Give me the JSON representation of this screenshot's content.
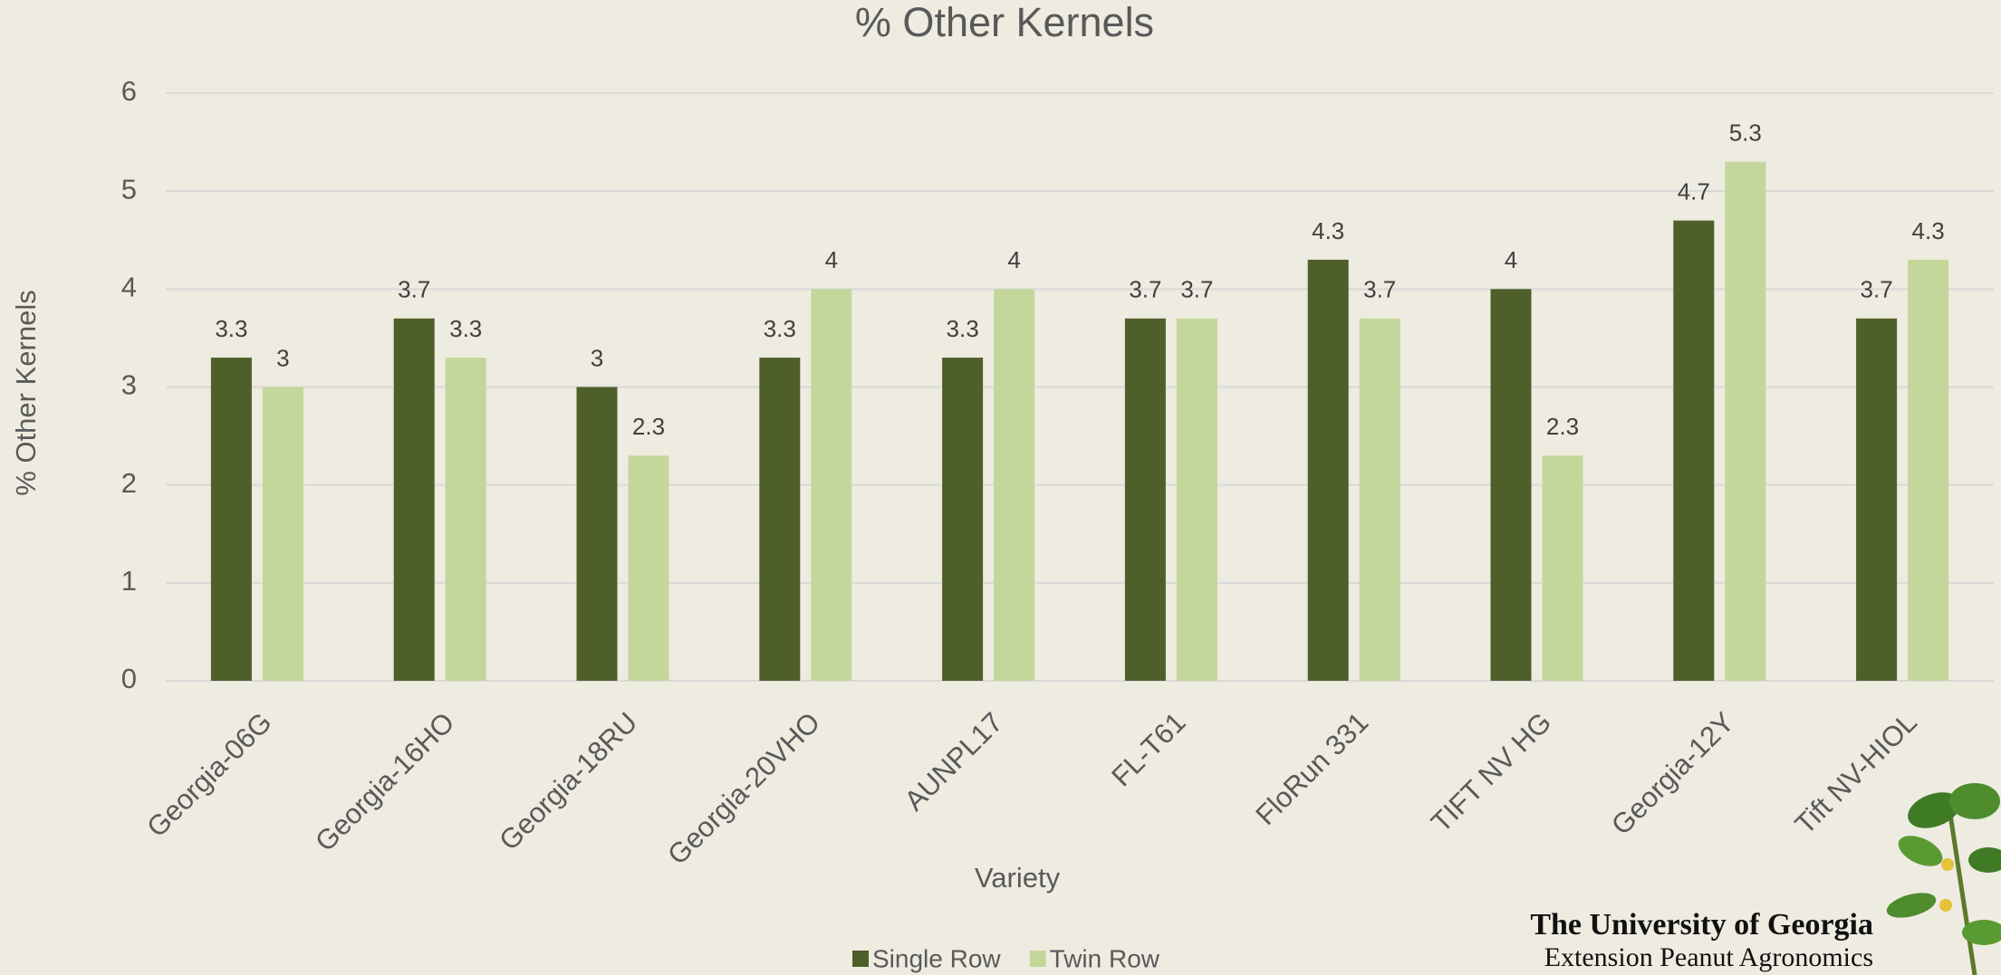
{
  "chart_data": {
    "type": "bar",
    "title": "% Other Kernels",
    "x_label": "Variety",
    "y_label": "% Other Kernels",
    "categories": [
      "Georgia-06G",
      "Georgia-16HO",
      "Georgia-18RU",
      "Georgia-20VHO",
      "AUNPL17",
      "FL-T61",
      "FloRun 331",
      "TIFT NV HG",
      "Georgia-12Y",
      "Tift NV-HIOL"
    ],
    "series": [
      {
        "name": "Single Row",
        "color": "#4f5f2a",
        "values": [
          3.3,
          3.7,
          3,
          3.3,
          3.3,
          3.7,
          4.3,
          4,
          4.7,
          3.7
        ]
      },
      {
        "name": "Twin Row",
        "color": "#c4d79b",
        "values": [
          3,
          3.3,
          2.3,
          4,
          4,
          3.7,
          3.7,
          2.3,
          5.3,
          4.3
        ]
      }
    ],
    "ylim": [
      0,
      6
    ],
    "yticks": [
      0,
      1,
      2,
      3,
      4,
      5,
      6
    ],
    "grid": true,
    "legend": "bottom"
  },
  "footer": {
    "line1": "The University of Georgia",
    "line2": "Extension Peanut Agronomics"
  }
}
